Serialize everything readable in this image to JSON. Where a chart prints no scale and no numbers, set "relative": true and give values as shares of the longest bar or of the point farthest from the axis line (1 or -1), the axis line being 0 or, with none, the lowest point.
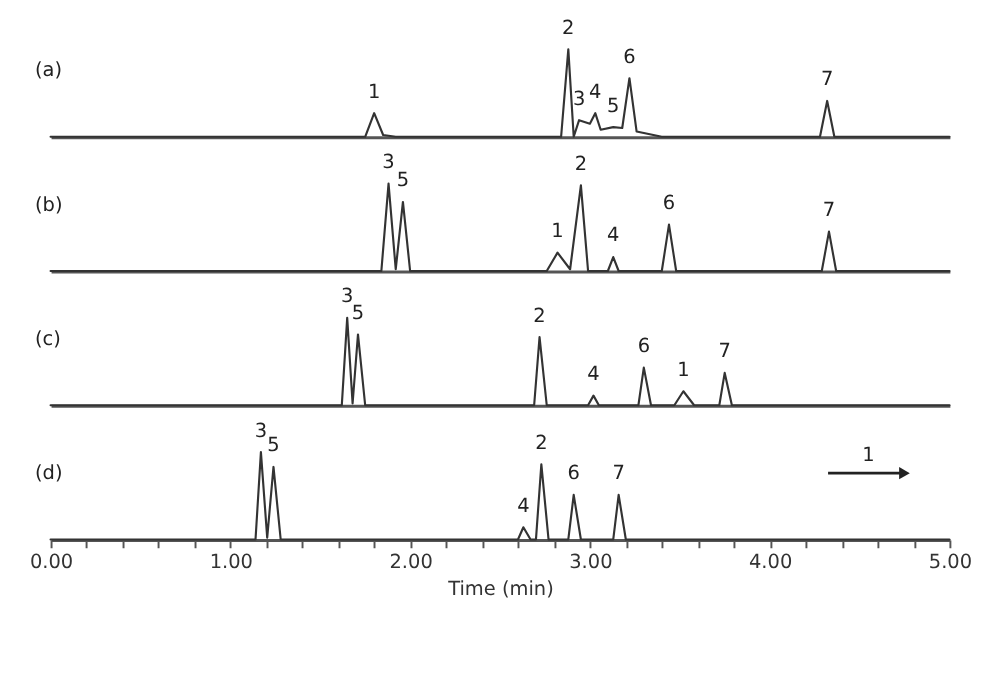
{
  "chart_data": [
    {
      "type": "line",
      "title": "(a)",
      "relative": true,
      "xlim": [
        0,
        5
      ],
      "tick_labels": false,
      "marker": "none",
      "line_style": "solid",
      "series": [
        {
          "color": "#333333",
          "x": [
            0,
            1.75,
            1.8,
            1.85,
            1.92,
            2.84,
            2.88,
            2.91,
            2.94,
            3.0,
            3.03,
            3.06,
            3.13,
            3.18,
            3.22,
            3.26,
            3.4,
            4.28,
            4.32,
            4.36,
            5
          ],
          "values": [
            0,
            0,
            0.27,
            0.02,
            0,
            0,
            1,
            0,
            0.19,
            0.15,
            0.27,
            0.08,
            0.11,
            0.1,
            0.67,
            0.06,
            0,
            0,
            0.41,
            0,
            0
          ]
        }
      ],
      "annotations": [
        {
          "text": "1",
          "x": 1.8,
          "y": 0.27
        },
        {
          "text": "2",
          "x": 2.88,
          "y": 1
        },
        {
          "text": "3",
          "x": 2.94,
          "y": 0.19
        },
        {
          "text": "4",
          "x": 3.03,
          "y": 0.27
        },
        {
          "text": "5",
          "x": 3.13,
          "y": 0.11
        },
        {
          "text": "6",
          "x": 3.22,
          "y": 0.67
        },
        {
          "text": "7",
          "x": 4.32,
          "y": 0.41
        }
      ]
    },
    {
      "type": "line",
      "title": "(b)",
      "relative": true,
      "xlim": [
        0,
        5
      ],
      "tick_labels": false,
      "marker": "none",
      "line_style": "solid",
      "series": [
        {
          "color": "#333333",
          "x": [
            0,
            1.84,
            1.88,
            1.92,
            1.96,
            2.0,
            2.76,
            2.82,
            2.89,
            2.95,
            2.99,
            3.1,
            3.13,
            3.16,
            3.4,
            3.44,
            3.48,
            4.29,
            4.33,
            4.37,
            5
          ],
          "values": [
            0,
            0,
            1,
            0.02,
            0.79,
            0,
            0,
            0.21,
            0.02,
            0.98,
            0,
            0,
            0.16,
            0,
            0,
            0.53,
            0,
            0,
            0.45,
            0,
            0
          ]
        }
      ],
      "annotations": [
        {
          "text": "3",
          "x": 1.88,
          "y": 1
        },
        {
          "text": "5",
          "x": 1.96,
          "y": 0.79
        },
        {
          "text": "1",
          "x": 2.82,
          "y": 0.21
        },
        {
          "text": "2",
          "x": 2.95,
          "y": 0.98
        },
        {
          "text": "4",
          "x": 3.13,
          "y": 0.16
        },
        {
          "text": "6",
          "x": 3.44,
          "y": 0.53
        },
        {
          "text": "7",
          "x": 4.33,
          "y": 0.45
        }
      ]
    },
    {
      "type": "line",
      "title": "(c)",
      "relative": true,
      "xlim": [
        0,
        5
      ],
      "tick_labels": false,
      "marker": "none",
      "line_style": "solid",
      "series": [
        {
          "color": "#333333",
          "x": [
            0,
            1.62,
            1.65,
            1.68,
            1.71,
            1.75,
            2.69,
            2.72,
            2.76,
            2.99,
            3.02,
            3.05,
            3.27,
            3.3,
            3.34,
            3.47,
            3.52,
            3.58,
            3.72,
            3.75,
            3.79,
            5
          ],
          "values": [
            0,
            0,
            1,
            0.02,
            0.81,
            0,
            0,
            0.78,
            0,
            0,
            0.11,
            0,
            0,
            0.43,
            0,
            0,
            0.16,
            0,
            0,
            0.37,
            0,
            0
          ]
        }
      ],
      "annotations": [
        {
          "text": "3",
          "x": 1.65,
          "y": 1
        },
        {
          "text": "5",
          "x": 1.71,
          "y": 0.81
        },
        {
          "text": "2",
          "x": 2.72,
          "y": 0.78
        },
        {
          "text": "4",
          "x": 3.02,
          "y": 0.11
        },
        {
          "text": "6",
          "x": 3.3,
          "y": 0.43
        },
        {
          "text": "1",
          "x": 3.52,
          "y": 0.16
        },
        {
          "text": "7",
          "x": 3.75,
          "y": 0.37
        }
      ]
    },
    {
      "type": "line",
      "title": "(d)",
      "relative": true,
      "xlim": [
        0,
        5
      ],
      "tick_labels": "x",
      "marker": "none",
      "line_style": "solid",
      "xlabel": "Time (min)",
      "xticks": [
        {
          "value": 0,
          "label": "0.00"
        },
        {
          "value": 0.2,
          "label": null
        },
        {
          "value": 0.4,
          "label": null
        },
        {
          "value": 0.6,
          "label": null
        },
        {
          "value": 0.8,
          "label": null
        },
        {
          "value": 1,
          "label": "1.00"
        },
        {
          "value": 1.2,
          "label": null
        },
        {
          "value": 1.4,
          "label": null
        },
        {
          "value": 1.6,
          "label": null
        },
        {
          "value": 1.8,
          "label": null
        },
        {
          "value": 2,
          "label": "2.00"
        },
        {
          "value": 2.2,
          "label": null
        },
        {
          "value": 2.4,
          "label": null
        },
        {
          "value": 2.6,
          "label": null
        },
        {
          "value": 2.8,
          "label": null
        },
        {
          "value": 3,
          "label": "3.00"
        },
        {
          "value": 3.2,
          "label": null
        },
        {
          "value": 3.4,
          "label": null
        },
        {
          "value": 3.6,
          "label": null
        },
        {
          "value": 3.8,
          "label": null
        },
        {
          "value": 4,
          "label": "4.00"
        },
        {
          "value": 4.2,
          "label": null
        },
        {
          "value": 4.4,
          "label": null
        },
        {
          "value": 4.6,
          "label": null
        },
        {
          "value": 4.8,
          "label": null
        },
        {
          "value": 5,
          "label": "5.00"
        }
      ],
      "series": [
        {
          "color": "#333333",
          "x": [
            0,
            1.14,
            1.17,
            1.205,
            1.24,
            1.28,
            2.6,
            2.63,
            2.67,
            2.7,
            2.73,
            2.77,
            2.88,
            2.91,
            2.95,
            3.13,
            3.16,
            3.2,
            5
          ],
          "values": [
            0,
            0,
            1,
            0.02,
            0.83,
            0,
            0,
            0.14,
            0,
            0,
            0.86,
            0,
            0,
            0.51,
            0,
            0,
            0.51,
            0,
            0
          ]
        }
      ],
      "annotations": [
        "1",
        {
          "text": "3",
          "x": 1.17,
          "y": 1
        },
        {
          "text": "5",
          "x": 1.24,
          "y": 0.83
        },
        {
          "text": "4",
          "x": 2.63,
          "y": 0.14
        },
        {
          "text": "2",
          "x": 2.73,
          "y": 0.86
        },
        {
          "text": "6",
          "x": 2.91,
          "y": 0.51
        },
        {
          "text": "7",
          "x": 3.16,
          "y": 0.51
        }
      ]
    }
  ]
}
